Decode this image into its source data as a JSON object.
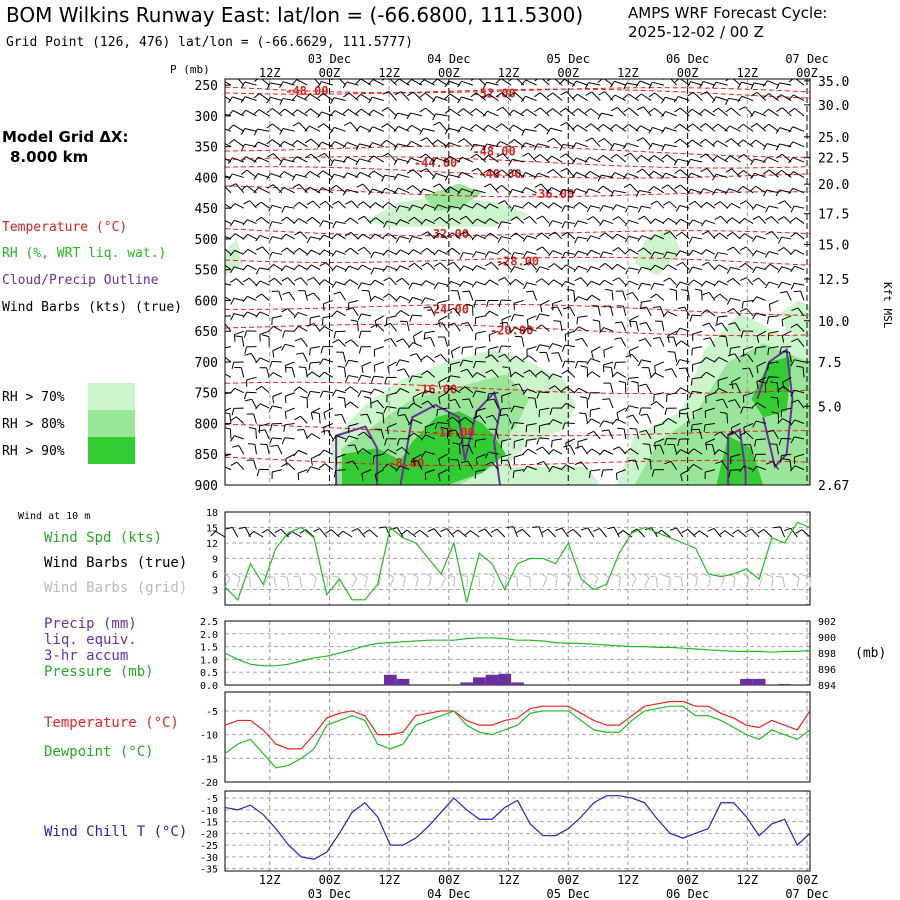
{
  "header": {
    "title": "BOM Wilkins Runway East:  lat/lon = (-66.6800, 111.5300)",
    "grid_point": "Grid Point (126, 476) lat/lon = (-66.6629, 111.5777)",
    "cycle_label": "AMPS WRF Forecast Cycle:",
    "cycle_value": "2025-12-02 / 00  Z"
  },
  "model_grid": {
    "label": "Model Grid ΔX:",
    "value": "8.000 km"
  },
  "time_axis": {
    "hours": [
      "12Z",
      "00Z",
      "12Z",
      "00Z",
      "12Z",
      "00Z",
      "12Z",
      "00Z",
      "12Z",
      "00Z"
    ],
    "dates": [
      "03 Dec",
      "04 Dec",
      "05 Dec",
      "06 Dec",
      "07 Dec"
    ]
  },
  "chart_data": [
    {
      "type": "heatmap",
      "name": "cross-section",
      "ylabel_left": "P (mb)",
      "ylabel_right": "Kft MSL",
      "pressure_ticks": [
        "250",
        "300",
        "350",
        "400",
        "450",
        "500",
        "550",
        "600",
        "650",
        "700",
        "750",
        "800",
        "850",
        "900"
      ],
      "height_ticks": [
        "35.0",
        "30.0",
        "25.0",
        "22.5",
        "20.0",
        "17.5",
        "15.0",
        "12.5",
        "10.0",
        "7.5",
        "5.0",
        "2.67"
      ],
      "ylim_mb": [
        240,
        900
      ],
      "temperature_contours": [
        {
          "label": "-48.00",
          "p": 258,
          "t": 0.14
        },
        {
          "label": "-52.00",
          "p": 262,
          "t": 0.46
        },
        {
          "label": "-48.00",
          "p": 356,
          "t": 0.46
        },
        {
          "label": "-44.00",
          "p": 375,
          "t": 0.36
        },
        {
          "label": "-40.00",
          "p": 393,
          "t": 0.47
        },
        {
          "label": "-36.00",
          "p": 425,
          "t": 0.56
        },
        {
          "label": "-32.00",
          "p": 490,
          "t": 0.38
        },
        {
          "label": "-28.00",
          "p": 535,
          "t": 0.5
        },
        {
          "label": "-24.00",
          "p": 613,
          "t": 0.38
        },
        {
          "label": "-20.00",
          "p": 647,
          "t": 0.49
        },
        {
          "label": "-16.00",
          "p": 743,
          "t": 0.36
        },
        {
          "label": "-12.00",
          "p": 813,
          "t": 0.39
        },
        {
          "label": "-8.00",
          "p": 863,
          "t": 0.31
        }
      ],
      "legend": {
        "temperature": "Temperature (°C)",
        "rh": "RH (%, WRT liq. wat.)",
        "cloud": "Cloud/Precip Outline",
        "wind": "Wind Barbs (kts) (true)",
        "rh_levels": [
          {
            "label": "RH > 70%",
            "color": "#ccf5cc"
          },
          {
            "label": "RH > 80%",
            "color": "#99e699"
          },
          {
            "label": "RH > 90%",
            "color": "#33cc33"
          }
        ]
      }
    },
    {
      "type": "line",
      "name": "wind",
      "header_label": "Wind at 10 m",
      "labels": {
        "speed": "Wind Spd (kts)",
        "barbs_true": "Wind Barbs (true)",
        "barbs_grid": "Wind Barbs (grid)"
      },
      "y_ticks": [
        "18",
        "15",
        "12",
        "9",
        "6",
        "3"
      ],
      "ylim": [
        0,
        18
      ],
      "series": [
        {
          "name": "Wind Spd (kts)",
          "color": "#22bb22",
          "values": [
            3.5,
            1,
            8,
            4,
            11,
            14,
            15,
            13,
            2,
            5,
            1,
            1,
            4,
            15,
            13,
            12,
            9,
            6,
            12,
            0.5,
            10,
            8,
            3,
            8,
            9,
            9,
            8,
            12,
            5,
            3,
            4,
            10,
            14,
            15,
            14,
            13,
            12,
            11,
            6,
            5.5,
            6,
            7,
            5,
            13,
            12,
            16,
            15
          ]
        }
      ]
    },
    {
      "type": "bar",
      "name": "precip-pressure",
      "labels": {
        "precip": "Precip (mm)",
        "liq": "liq. equiv.",
        "accum": "3-hr accum",
        "pressure": "Pressure (mb)"
      },
      "y_ticks_left": [
        "2.5",
        "2.0",
        "1.5",
        "1.0",
        "0.5",
        "0.0"
      ],
      "y_ticks_right": [
        "902",
        "900",
        "898",
        "896",
        "894"
      ],
      "right_unit": "(mb)",
      "ylim_precip": [
        0,
        2.5
      ],
      "ylim_pressure": [
        894,
        902
      ],
      "precip": [
        0,
        0,
        0,
        0,
        0,
        0,
        0,
        0,
        0,
        0,
        0,
        0,
        0,
        0.2,
        0.12,
        0,
        0,
        0,
        0,
        0.05,
        0.15,
        0.2,
        0.22,
        0.05,
        0,
        0,
        0,
        0,
        0,
        0,
        0,
        0,
        0,
        0,
        0,
        0,
        0,
        0,
        0,
        0,
        0,
        0.12,
        0.12,
        0,
        0.02,
        0,
        0
      ],
      "pressure": [
        898,
        897.2,
        896.6,
        896.4,
        896.4,
        896.6,
        897.0,
        897.4,
        897.6,
        898.0,
        898.4,
        898.9,
        899.2,
        899.3,
        899.4,
        899.5,
        899.6,
        899.6,
        899.6,
        899.8,
        899.9,
        899.9,
        899.8,
        899.6,
        899.6,
        899.5,
        899.3,
        899.2,
        899.2,
        899.1,
        899.0,
        898.9,
        898.8,
        898.8,
        898.7,
        898.7,
        898.6,
        898.5,
        898.4,
        898.3,
        898.2,
        898.2,
        898.2,
        898.1,
        898.2,
        898.2,
        898.3
      ]
    },
    {
      "type": "line",
      "name": "temperature",
      "labels": {
        "temp": "Temperature (°C)",
        "dew": "Dewpoint (°C)"
      },
      "y_ticks": [
        "-5",
        "-10",
        "-15",
        "-20"
      ],
      "ylim": [
        -20,
        -1
      ],
      "series": [
        {
          "name": "Temperature (°C)",
          "color": "#ee2222",
          "values": [
            -8,
            -7,
            -7,
            -9,
            -12,
            -13,
            -13,
            -10,
            -6.5,
            -5.5,
            -5,
            -6,
            -10,
            -10,
            -9.5,
            -6,
            -5.5,
            -5,
            -5,
            -7,
            -8,
            -8,
            -7,
            -6.5,
            -4.5,
            -4,
            -4,
            -4,
            -5.5,
            -7,
            -8,
            -8,
            -6,
            -4,
            -3.5,
            -3,
            -3,
            -4,
            -4,
            -5.5,
            -6.5,
            -8,
            -8.5,
            -7,
            -8,
            -9,
            -5
          ]
        },
        {
          "name": "Dewpoint (°C)",
          "color": "#22bb22",
          "values": [
            -14,
            -12,
            -11,
            -14,
            -17,
            -16.5,
            -15,
            -13,
            -8,
            -7,
            -6,
            -7,
            -12,
            -13,
            -12,
            -8,
            -7,
            -6,
            -5,
            -8,
            -9.5,
            -10,
            -9,
            -8,
            -5.5,
            -5,
            -5,
            -5,
            -7,
            -9,
            -9.5,
            -9.5,
            -7,
            -5,
            -4.5,
            -4,
            -4,
            -6,
            -6,
            -7,
            -8.5,
            -10,
            -11,
            -9,
            -10,
            -11,
            -9
          ]
        }
      ]
    },
    {
      "type": "line",
      "name": "windchill",
      "labels": {
        "wc": "Wind Chill T (°C)"
      },
      "y_ticks": [
        "-5",
        "-10",
        "-15",
        "-20",
        "-25",
        "-30",
        "-35"
      ],
      "ylim": [
        -36,
        -2
      ],
      "series": [
        {
          "name": "Wind Chill T (°C)",
          "color": "#2222bb",
          "values": [
            -9,
            -10,
            -8,
            -12,
            -18,
            -25,
            -30,
            -31,
            -28,
            -20,
            -11,
            -7,
            -13,
            -25,
            -25,
            -22,
            -17,
            -11,
            -5,
            -10,
            -14,
            -14,
            -9,
            -6,
            -16,
            -21,
            -21,
            -18,
            -13,
            -7,
            -4,
            -4,
            -5,
            -7,
            -14,
            -20,
            -22,
            -20,
            -18,
            -7,
            -7,
            -13,
            -21,
            -16,
            -14,
            -25,
            -20
          ]
        }
      ]
    }
  ]
}
